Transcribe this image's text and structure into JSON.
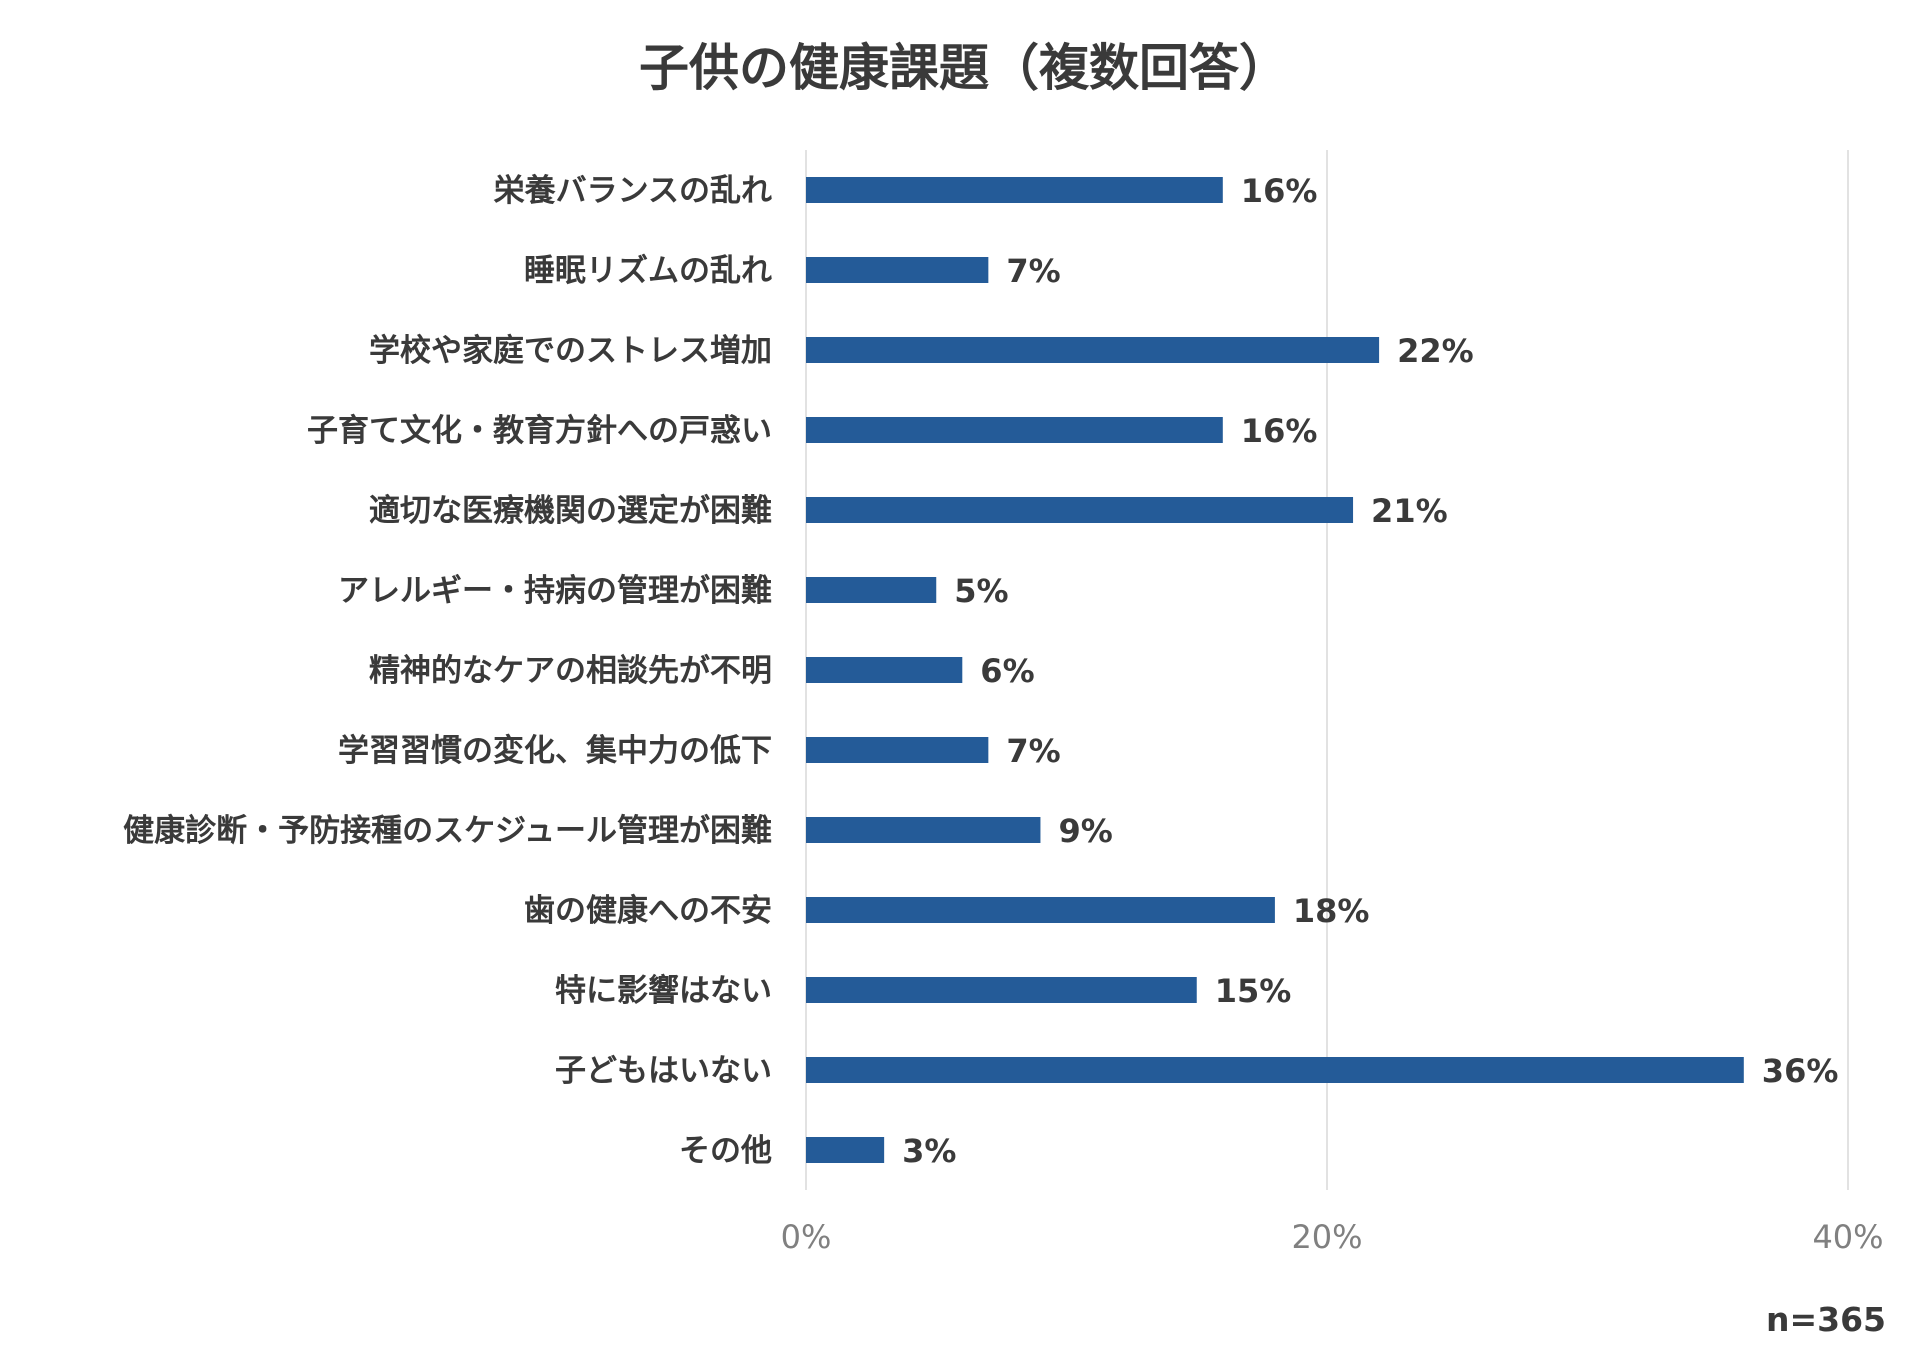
{
  "chart_data": {
    "type": "bar",
    "orientation": "horizontal",
    "title": "子供の健康課題（複数回答）",
    "categories": [
      "栄養バランスの乱れ",
      "睡眠リズムの乱れ",
      "学校や家庭でのストレス増加",
      "子育て文化・教育方針への戸惑い",
      "適切な医療機関の選定が困難",
      "アレルギー・持病の管理が困難",
      "精神的なケアの相談先が不明",
      "学習習慣の変化、集中力の低下",
      "健康診断・予防接種のスケジュール管理が困難",
      "歯の健康への不安",
      "特に影響はない",
      "子どもはいない",
      "その他"
    ],
    "values": [
      16,
      7,
      22,
      16,
      21,
      5,
      6,
      7,
      9,
      18,
      15,
      36,
      3
    ],
    "value_labels": [
      "16%",
      "7%",
      "22%",
      "16%",
      "21%",
      "5%",
      "6%",
      "7%",
      "9%",
      "18%",
      "15%",
      "36%",
      "3%"
    ],
    "xlim": [
      0,
      40
    ],
    "x_ticks": [
      0,
      20,
      40
    ],
    "x_tick_labels": [
      "0%",
      "20%",
      "40%"
    ],
    "bar_color": "#245b98",
    "grid": true,
    "legend": "none",
    "note": "n=365"
  }
}
